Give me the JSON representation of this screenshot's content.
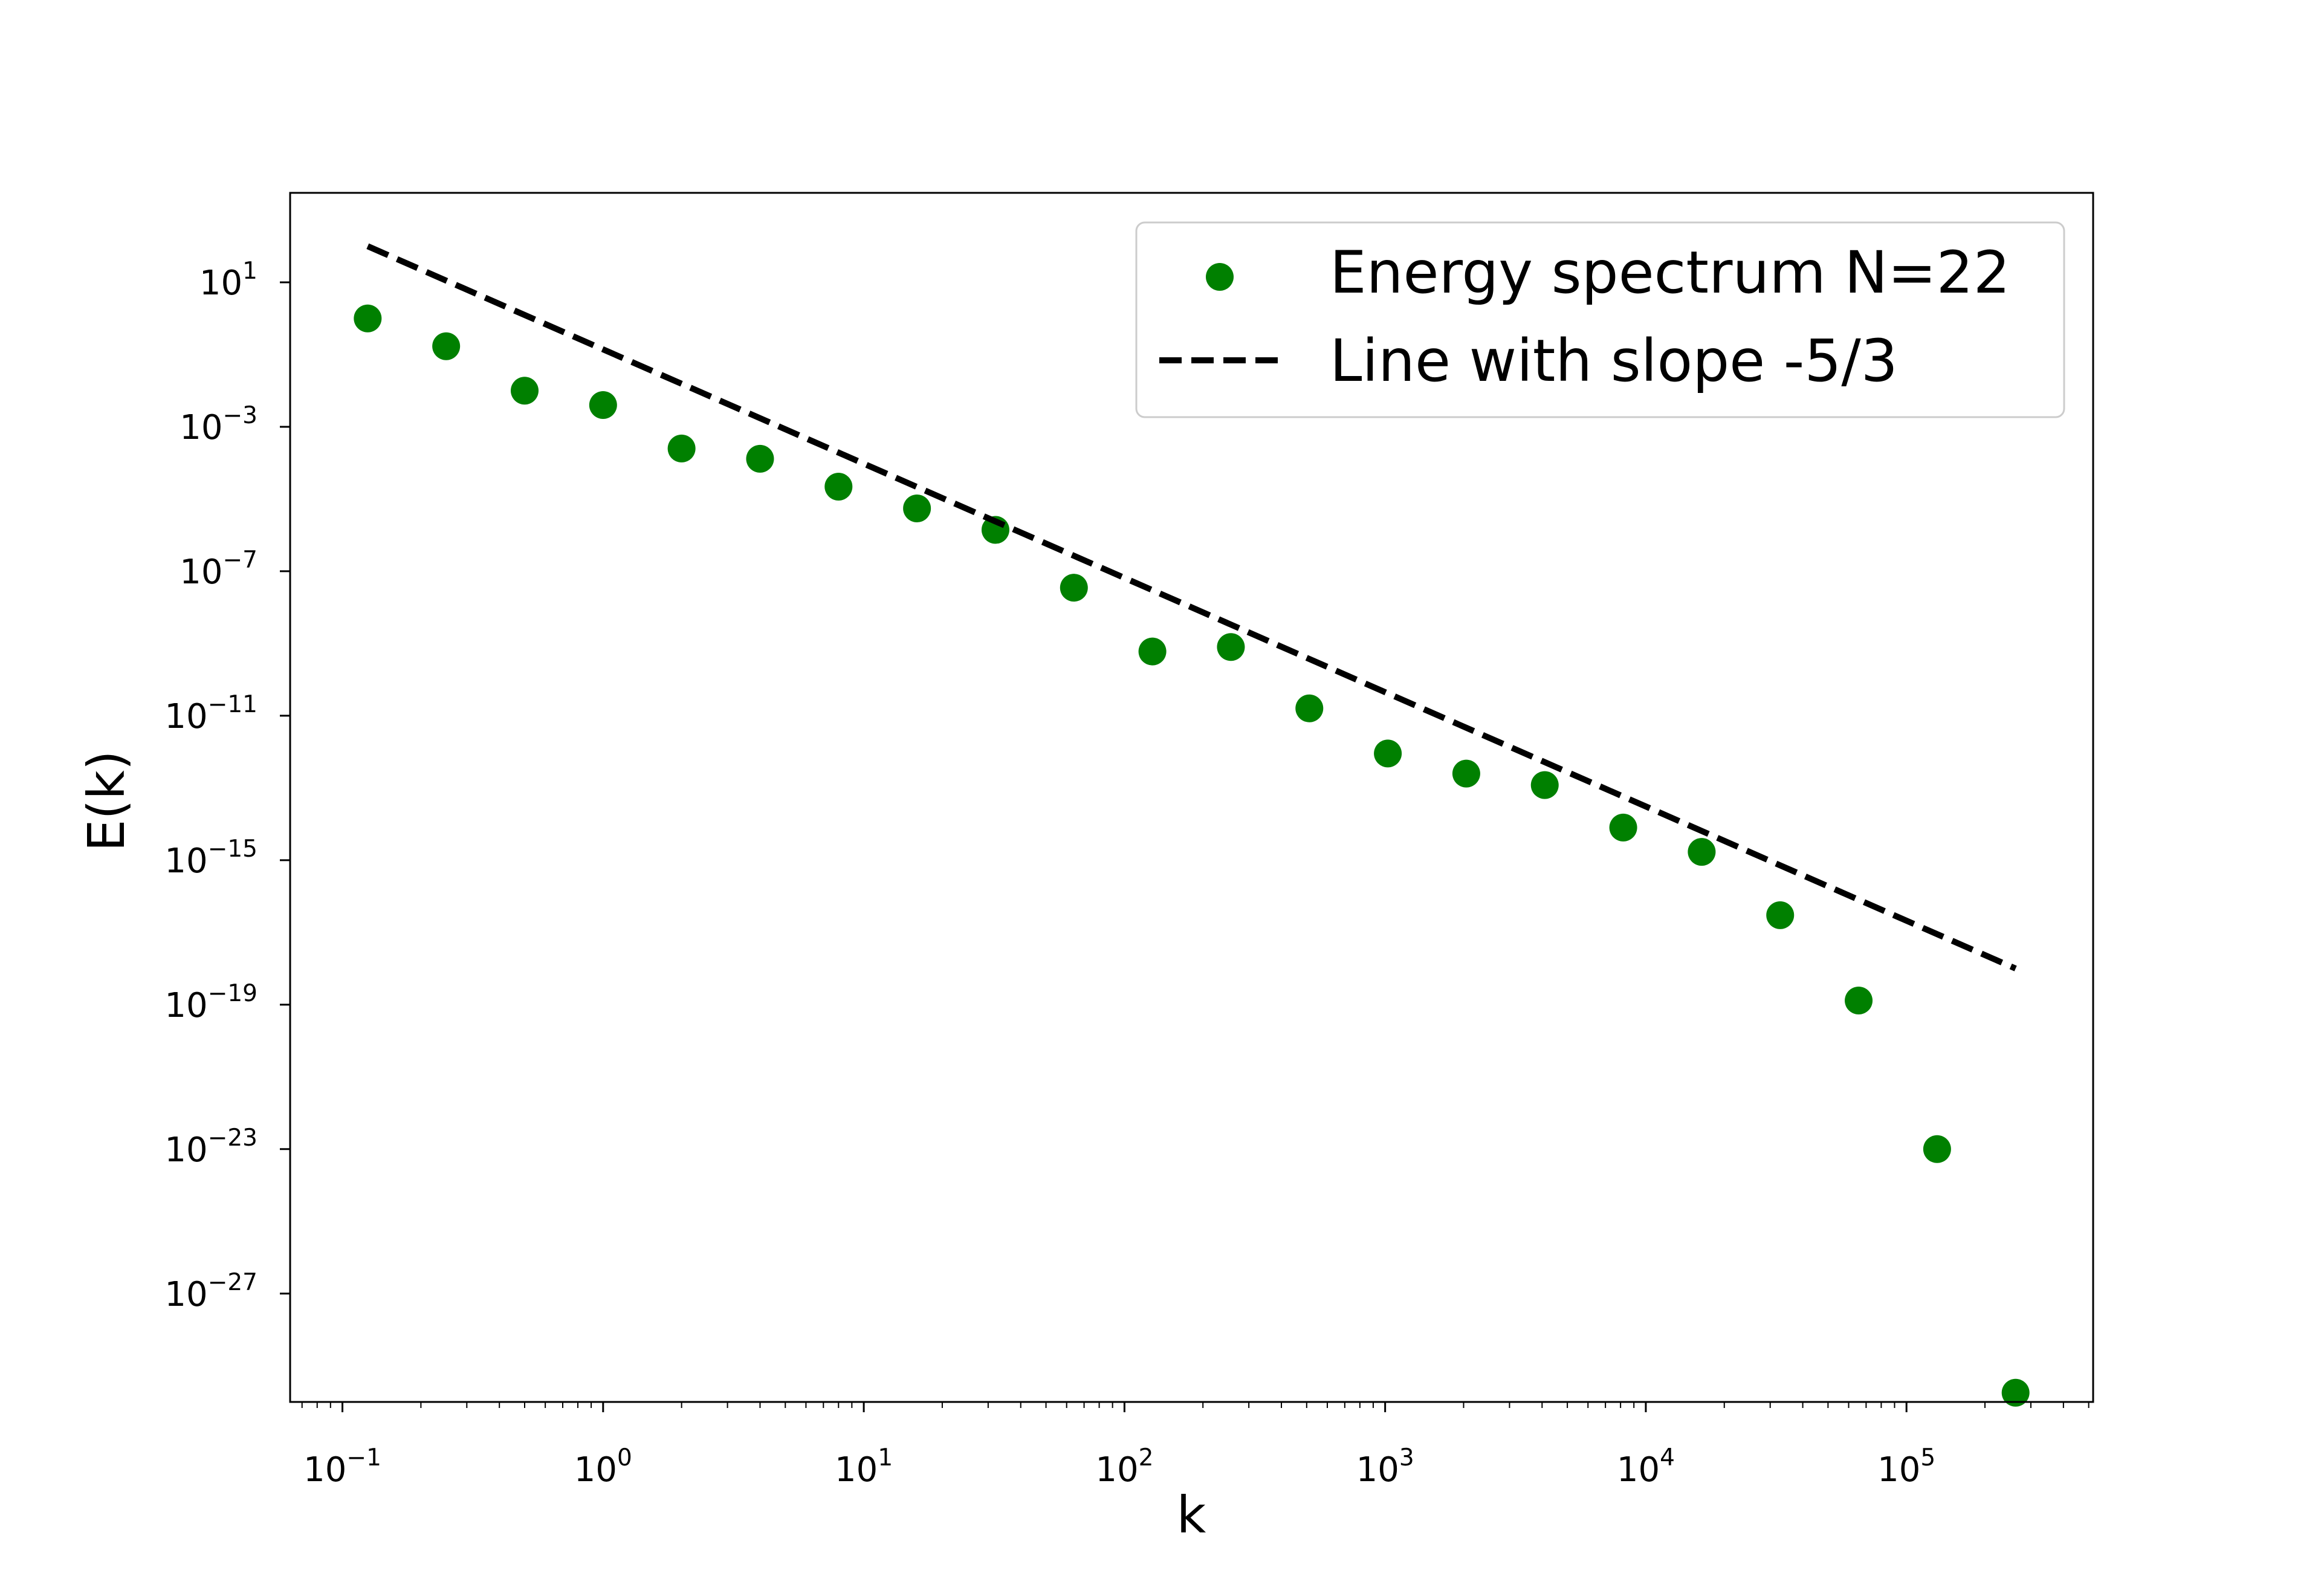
{
  "chart_data": {
    "type": "scatter",
    "title": "",
    "xlabel": "k",
    "ylabel": "E(k)",
    "xscale": "log",
    "yscale": "log",
    "xlim": [
      0.063,
      520000
    ],
    "ylim": [
      1e-30,
      3000
    ],
    "grid": false,
    "legend_position": "top-right",
    "x_ticks": [
      {
        "base": "10",
        "exp": "−1"
      },
      {
        "base": "10",
        "exp": "0"
      },
      {
        "base": "10",
        "exp": "1"
      },
      {
        "base": "10",
        "exp": "2"
      },
      {
        "base": "10",
        "exp": "3"
      },
      {
        "base": "10",
        "exp": "4"
      },
      {
        "base": "10",
        "exp": "5"
      }
    ],
    "x_tick_values": [
      0.1,
      1,
      10,
      100,
      1000,
      10000,
      100000
    ],
    "y_ticks": [
      {
        "base": "10",
        "exp": "1"
      },
      {
        "base": "10",
        "exp": "−3"
      },
      {
        "base": "10",
        "exp": "−7"
      },
      {
        "base": "10",
        "exp": "−11"
      },
      {
        "base": "10",
        "exp": "−15"
      },
      {
        "base": "10",
        "exp": "−19"
      },
      {
        "base": "10",
        "exp": "−23"
      },
      {
        "base": "10",
        "exp": "−27"
      }
    ],
    "y_tick_values": [
      10.0,
      0.001,
      1e-07,
      1e-11,
      1e-15,
      1e-19,
      1e-23,
      1e-27
    ],
    "series": [
      {
        "name": "Energy spectrum N=22",
        "kind": "scatter",
        "color": "#008000",
        "x": [
          0.125,
          0.25,
          0.5,
          1,
          2,
          4,
          8,
          16,
          32,
          64,
          128,
          256,
          512,
          1024,
          2048,
          4096,
          8192,
          16384,
          32768,
          65536,
          131072,
          262144
        ],
        "y": [
          1.0,
          0.17,
          0.01,
          0.004,
          0.00025,
          0.00013,
          2.2e-05,
          5.5e-06,
          1.4e-06,
          3.5e-08,
          6e-10,
          8e-10,
          1.6e-11,
          9e-13,
          2.5e-13,
          1.2e-13,
          8e-15,
          1.7e-15,
          3e-17,
          1.3e-19,
          1e-23,
          1.8e-30
        ]
      },
      {
        "name": "Line with slope -5/3",
        "kind": "line",
        "style": "dashed",
        "color": "#000000",
        "x": [
          0.125,
          262144
        ],
        "y": [
          100,
          1e-18
        ]
      }
    ]
  }
}
